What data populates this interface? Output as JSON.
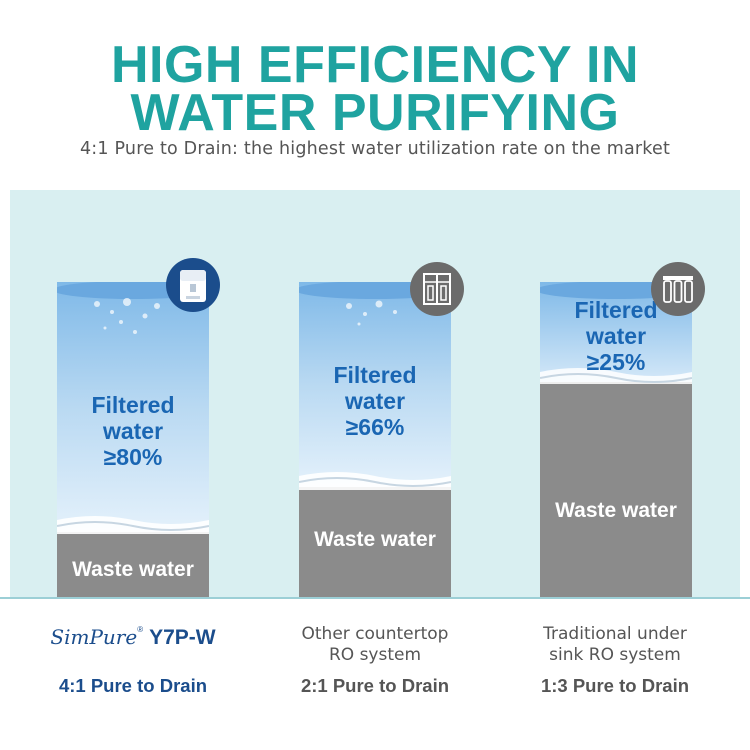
{
  "header": {
    "title_line1": "HIGH EFFICIENCY IN",
    "title_line2": "WATER PURIFYING",
    "subtitle": "4:1 Pure to Drain: the highest water utilization rate on the market"
  },
  "columns": [
    {
      "filtered_line1": "Filtered",
      "filtered_line2": "water",
      "filtered_line3": "≥80%",
      "filtered_fraction": 0.8,
      "waste_label": "Waste water",
      "badge_icon": "countertop-purifier-icon",
      "brand": "SimPure",
      "brand_mark": "®",
      "model": "Y7P-W",
      "ratio": "4:1 Pure to Drain"
    },
    {
      "filtered_line1": "Filtered",
      "filtered_line2": "water",
      "filtered_line3": "≥66%",
      "filtered_fraction": 0.66,
      "waste_label": "Waste water",
      "badge_icon": "countertop-ro-unit-icon",
      "system_line1": "Other countertop",
      "system_line2": "RO system",
      "ratio": "2:1 Pure to Drain"
    },
    {
      "filtered_line1": "Filtered",
      "filtered_line2": "water",
      "filtered_line3": "≥25%",
      "filtered_fraction": 0.25,
      "waste_label": "Waste water",
      "badge_icon": "under-sink-filters-icon",
      "system_line1": "Traditional under",
      "system_line2": "sink RO system",
      "ratio": "1:3 Pure to Drain"
    }
  ],
  "colors": {
    "accent_teal": "#1fa3a0",
    "brand_blue": "#1b4d8c",
    "filtered_text": "#1a66b3",
    "waste_gray": "#8b8b8b",
    "panel_bg": "#d9eff1"
  }
}
